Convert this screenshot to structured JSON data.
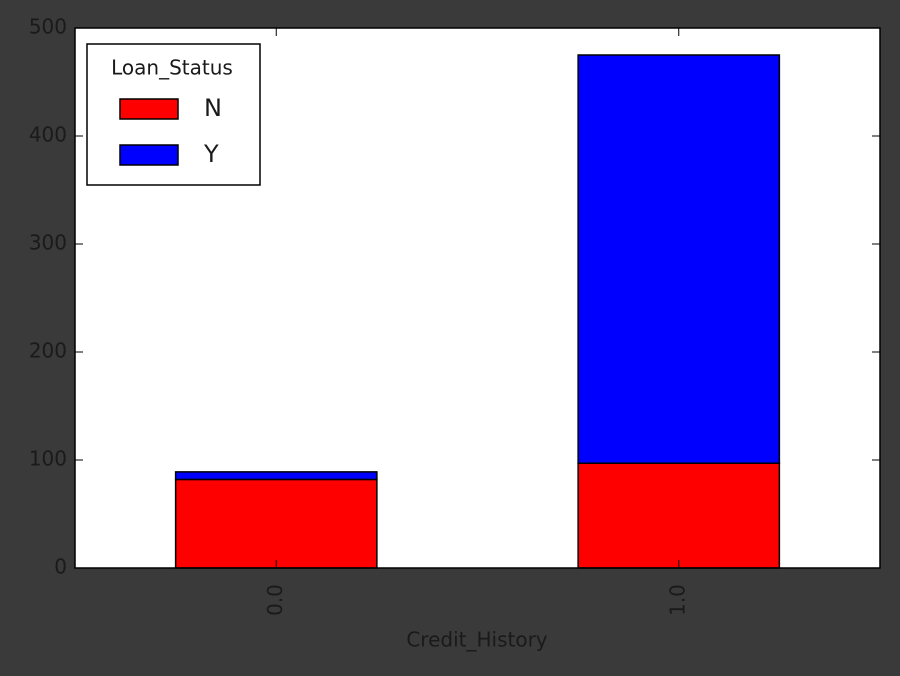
{
  "chart_data": {
    "type": "stacked_bar",
    "xlabel": "Credit_History",
    "categories": [
      "0.0",
      "1.0"
    ],
    "series": [
      {
        "name": "N",
        "color": "#ff0000",
        "values": [
          82,
          97
        ]
      },
      {
        "name": "Y",
        "color": "#0000ff",
        "values": [
          7,
          378
        ]
      }
    ],
    "ylim": [
      0,
      500
    ],
    "yticks": [
      0,
      100,
      200,
      300,
      400,
      500
    ],
    "legend_title": "Loan_Status",
    "legend": "upper left"
  }
}
